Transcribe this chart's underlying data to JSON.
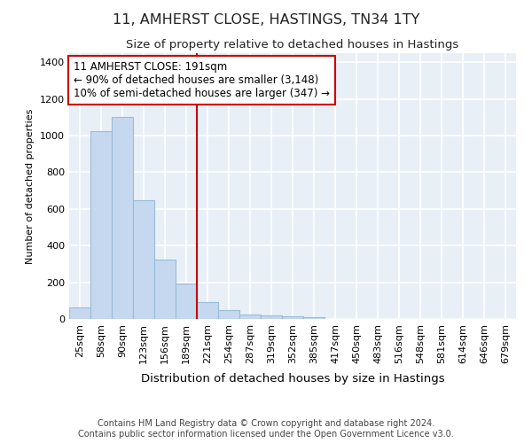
{
  "title1": "11, AMHERST CLOSE, HASTINGS, TN34 1TY",
  "title2": "Size of property relative to detached houses in Hastings",
  "xlabel": "Distribution of detached houses by size in Hastings",
  "ylabel": "Number of detached properties",
  "categories": [
    "25sqm",
    "58sqm",
    "90sqm",
    "123sqm",
    "156sqm",
    "189sqm",
    "221sqm",
    "254sqm",
    "287sqm",
    "319sqm",
    "352sqm",
    "385sqm",
    "417sqm",
    "450sqm",
    "483sqm",
    "516sqm",
    "548sqm",
    "581sqm",
    "614sqm",
    "646sqm",
    "679sqm"
  ],
  "values": [
    65,
    1025,
    1100,
    650,
    325,
    195,
    90,
    50,
    25,
    20,
    15,
    10,
    0,
    0,
    0,
    0,
    0,
    0,
    0,
    0,
    0
  ],
  "bar_color": "#c5d8f0",
  "bar_edge_color": "#9abcd8",
  "vline_color": "#cc0000",
  "annotation_text": "11 AMHERST CLOSE: 191sqm\n← 90% of detached houses are smaller (3,148)\n10% of semi-detached houses are larger (347) →",
  "annotation_box_color": "#ffffff",
  "annotation_box_edge": "#cc0000",
  "ylim": [
    0,
    1450
  ],
  "yticks": [
    0,
    200,
    400,
    600,
    800,
    1000,
    1200,
    1400
  ],
  "background_color": "#e8eff7",
  "grid_color": "#ffffff",
  "footer": "Contains HM Land Registry data © Crown copyright and database right 2024.\nContains public sector information licensed under the Open Government Licence v3.0.",
  "title1_fontsize": 11.5,
  "title2_fontsize": 9.5,
  "xlabel_fontsize": 9.5,
  "ylabel_fontsize": 8,
  "tick_fontsize": 8,
  "footer_fontsize": 7,
  "ann_fontsize": 8.5
}
